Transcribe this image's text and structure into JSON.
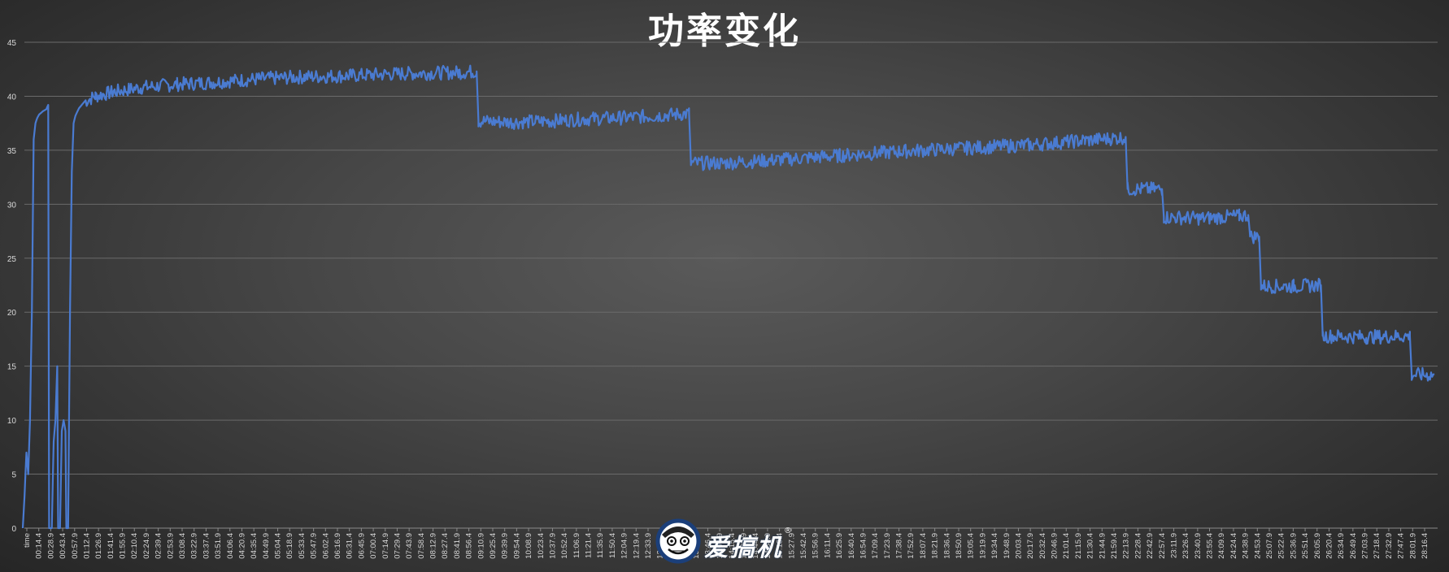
{
  "chart_data": {
    "type": "line",
    "title": "功率变化",
    "xlabel": "",
    "ylabel": "",
    "ylim": [
      0,
      45
    ],
    "y_ticks": [
      "0",
      "5",
      "10",
      "15",
      "20",
      "25",
      "30",
      "35",
      "40",
      "45"
    ],
    "grid": "horizontal",
    "legend": "none",
    "first_category": "time",
    "x_tick_labels": [
      "00:14.4",
      "00:28.9",
      "00:43.4",
      "00:57.9",
      "01:12.4",
      "01:26.9",
      "01:41.4",
      "01:55.9",
      "02:10.4",
      "02:24.9",
      "02:39.4",
      "02:53.9",
      "03:08.4",
      "03:22.9",
      "03:37.4",
      "03:51.9",
      "04:06.4",
      "04:20.9",
      "04:35.4",
      "04:49.9",
      "05:04.4",
      "05:18.9",
      "05:33.4",
      "05:47.9",
      "06:02.4",
      "06:16.9",
      "06:31.4",
      "06:45.9",
      "07:00.4",
      "07:14.9",
      "07:29.4",
      "07:43.9",
      "07:58.4",
      "08:12.9",
      "08:27.4",
      "08:41.9",
      "08:56.4",
      "09:10.9",
      "09:25.4",
      "09:39.9",
      "09:54.4",
      "10:08.9",
      "10:23.4",
      "10:37.9",
      "10:52.4",
      "11:06.9",
      "11:21.4",
      "11:35.9",
      "11:50.4",
      "12:04.9",
      "12:19.4",
      "12:33.9",
      "12:48.4",
      "13:02.9",
      "13:17.4",
      "13:31.9",
      "13:46.4",
      "14:00.9",
      "14:15.4",
      "14:29.9",
      "14:44.4",
      "14:58.9",
      "15:13.4",
      "15:27.9",
      "15:42.4",
      "15:56.9",
      "16:11.4",
      "16:25.9",
      "16:40.4",
      "16:54.9",
      "17:09.4",
      "17:23.9",
      "17:38.4",
      "17:52.9",
      "18:07.4",
      "18:21.9",
      "18:36.4",
      "18:50.9",
      "19:05.4",
      "19:19.9",
      "19:34.4",
      "19:48.9",
      "20:03.4",
      "20:17.9",
      "20:32.4",
      "20:46.9",
      "21:01.4",
      "21:15.9",
      "21:30.4",
      "21:44.9",
      "21:59.4",
      "22:13.9",
      "22:28.4",
      "22:42.9",
      "22:57.4",
      "23:11.9",
      "23:26.4",
      "23:40.9",
      "23:55.4",
      "24:09.9",
      "24:24.4",
      "24:38.9",
      "24:53.4",
      "25:07.9",
      "25:22.4",
      "25:36.9",
      "25:51.4",
      "26:05.9",
      "26:20.4",
      "26:34.9",
      "26:49.4",
      "27:03.9",
      "27:18.4",
      "27:32.9",
      "27:47.4",
      "28:01.9",
      "28:16.4"
    ],
    "series": [
      {
        "color": "#4a7bd1",
        "points": [
          [
            0,
            0
          ],
          [
            2,
            3
          ],
          [
            4,
            7
          ],
          [
            6,
            5
          ],
          [
            8,
            10
          ],
          [
            10,
            20
          ],
          [
            12,
            36
          ],
          [
            14,
            37.5
          ],
          [
            16,
            38
          ],
          [
            18,
            38.3
          ],
          [
            22,
            38.6
          ],
          [
            26,
            38.8
          ],
          [
            28,
            39.2
          ],
          [
            29,
            0
          ],
          [
            32,
            0
          ],
          [
            34,
            8
          ],
          [
            36,
            10
          ],
          [
            38,
            15
          ],
          [
            39,
            0
          ],
          [
            41,
            0
          ],
          [
            43,
            9
          ],
          [
            45,
            10
          ],
          [
            47,
            9
          ],
          [
            48,
            0
          ],
          [
            50,
            0
          ],
          [
            52,
            20
          ],
          [
            54,
            33
          ],
          [
            56,
            37.5
          ],
          [
            58,
            38.2
          ],
          [
            62,
            38.9
          ],
          [
            68,
            39.5
          ],
          [
            80,
            40
          ],
          [
            100,
            40.4
          ],
          [
            130,
            40.8
          ],
          [
            170,
            41.1
          ],
          [
            210,
            41.3
          ],
          [
            260,
            41.6
          ],
          [
            310,
            41.8
          ],
          [
            360,
            41.9
          ],
          [
            420,
            42.1
          ],
          [
            480,
            42.2
          ],
          [
            500,
            42.3
          ],
          [
            502,
            37.7
          ],
          [
            540,
            37.6
          ],
          [
            580,
            37.7
          ],
          [
            620,
            37.9
          ],
          [
            660,
            38
          ],
          [
            700,
            38.2
          ],
          [
            734,
            38.4
          ],
          [
            736,
            33.8
          ],
          [
            770,
            33.8
          ],
          [
            830,
            34.1
          ],
          [
            900,
            34.5
          ],
          [
            970,
            34.9
          ],
          [
            1040,
            35.2
          ],
          [
            1110,
            35.5
          ],
          [
            1170,
            35.9
          ],
          [
            1215,
            36.2
          ],
          [
            1217,
            31.4
          ],
          [
            1255,
            31.4
          ],
          [
            1257,
            28.8
          ],
          [
            1300,
            28.7
          ],
          [
            1340,
            28.9
          ],
          [
            1350,
            29
          ],
          [
            1352,
            27
          ],
          [
            1362,
            27
          ],
          [
            1364,
            22.4
          ],
          [
            1400,
            22.4
          ],
          [
            1430,
            22.5
          ],
          [
            1432,
            17.8
          ],
          [
            1480,
            17.7
          ],
          [
            1528,
            17.8
          ],
          [
            1530,
            14.2
          ],
          [
            1555,
            14.2
          ]
        ]
      }
    ]
  },
  "watermark": {
    "text": "爱搞机",
    "reg": "®"
  }
}
